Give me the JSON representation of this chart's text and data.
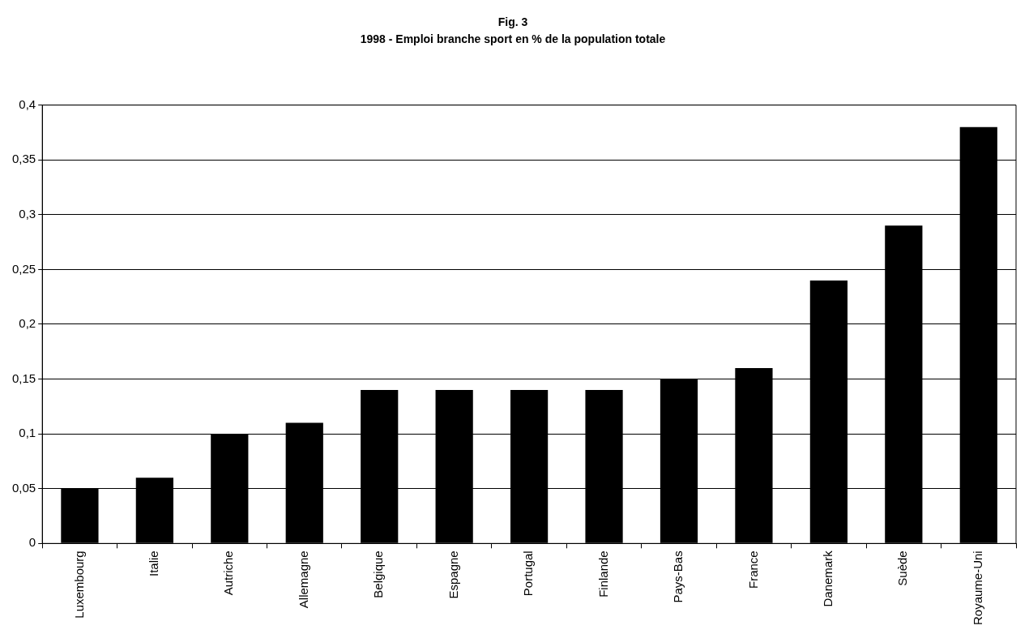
{
  "chart_data": {
    "type": "bar",
    "title": "Fig. 3",
    "subtitle": "1998 - Emploi branche sport en % de la population totale",
    "categories": [
      "Luxembourg",
      "Italie",
      "Autriche",
      "Allemagne",
      "Belgique",
      "Espagne",
      "Portugal",
      "Finlande",
      "Pays-Bas",
      "France",
      "Danemark",
      "Suède",
      "Royaume-Uni"
    ],
    "values": [
      0.05,
      0.06,
      0.1,
      0.11,
      0.14,
      0.14,
      0.14,
      0.14,
      0.15,
      0.16,
      0.24,
      0.29,
      0.38
    ],
    "color": "#000000",
    "ylim": [
      0,
      0.4
    ],
    "yticks": [
      {
        "value": 0,
        "label": "0"
      },
      {
        "value": 0.05,
        "label": "0,05"
      },
      {
        "value": 0.1,
        "label": "0,1"
      },
      {
        "value": 0.15,
        "label": "0,15"
      },
      {
        "value": 0.2,
        "label": "0,2"
      },
      {
        "value": 0.25,
        "label": "0,25"
      },
      {
        "value": 0.3,
        "label": "0,3"
      },
      {
        "value": 0.35,
        "label": "0,35"
      },
      {
        "value": 0.4,
        "label": "0,4"
      }
    ],
    "grid": "y",
    "legend": false
  }
}
